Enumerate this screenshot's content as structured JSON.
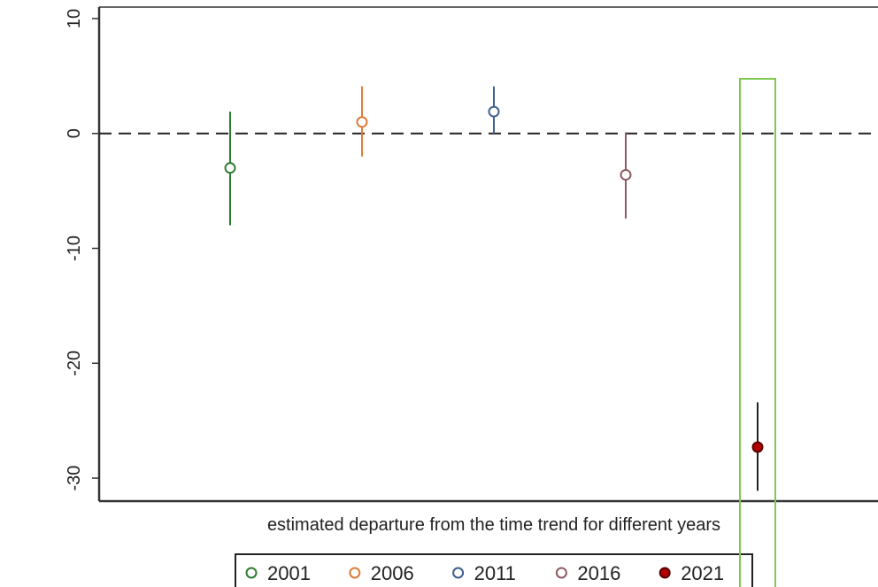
{
  "chart_data": {
    "type": "scatter",
    "title": "",
    "xlabel": "estimated departure from the time trend for different years",
    "ylabel": "",
    "ylim": [
      -32,
      11
    ],
    "yticks": [
      10,
      0,
      -10,
      -20,
      -30
    ],
    "reference_line": 0,
    "series": [
      {
        "name": "2001",
        "estimate": -3.0,
        "ci_low": -8.0,
        "ci_high": 1.9,
        "color": "#2e7d32",
        "filled": false
      },
      {
        "name": "2006",
        "estimate": 1.0,
        "ci_low": -2.0,
        "ci_high": 4.1,
        "color": "#e07b39",
        "filled": false
      },
      {
        "name": "2011",
        "estimate": 1.9,
        "ci_low": 0.0,
        "ci_high": 4.1,
        "color": "#3f5f8f",
        "filled": false
      },
      {
        "name": "2016",
        "estimate": -3.6,
        "ci_low": -7.4,
        "ci_high": 0.1,
        "color": "#8e5a62",
        "filled": false
      },
      {
        "name": "2021",
        "estimate": -27.3,
        "ci_low": -31.1,
        "ci_high": -23.4,
        "color": "#b00000",
        "filled": true
      }
    ],
    "highlight": {
      "series": "2021",
      "color": "#7ec850"
    },
    "legend": {
      "position": "bottom"
    },
    "grid": false
  }
}
